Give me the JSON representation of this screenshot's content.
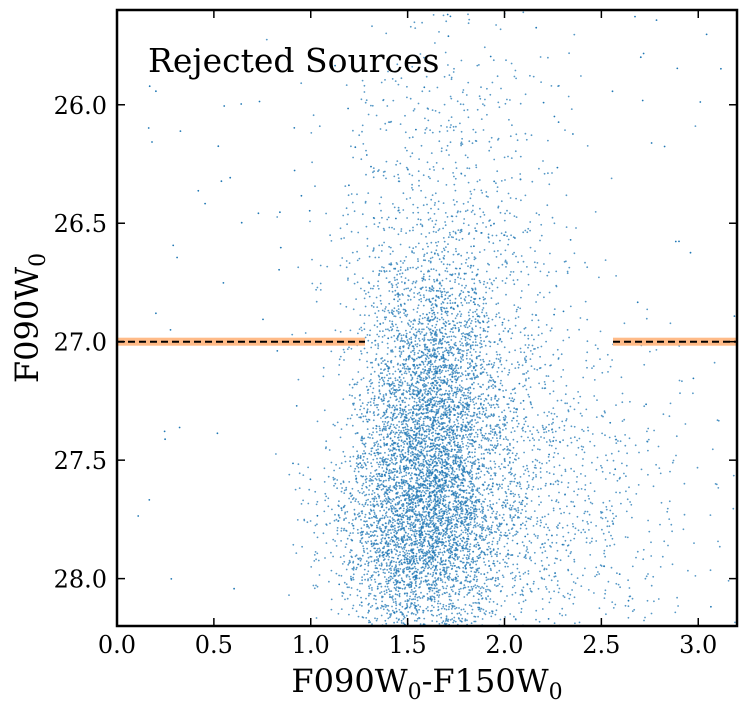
{
  "chart_data": {
    "type": "scatter",
    "annotation": "Rejected Sources",
    "xlabel": {
      "main": "F090W",
      "sub": "0",
      "sep": "-",
      "main2": "F150W",
      "sub2": "0"
    },
    "ylabel": {
      "main": "F090W",
      "sub": "0"
    },
    "xlim": [
      0.0,
      3.2
    ],
    "ylim": [
      28.2,
      25.6
    ],
    "y_inverted": true,
    "xticks": [
      0.0,
      0.5,
      1.0,
      1.5,
      2.0,
      2.5,
      3.0
    ],
    "xtick_labels": [
      "0.0",
      "0.5",
      "1.0",
      "1.5",
      "2.0",
      "2.5",
      "3.0"
    ],
    "yticks": [
      26.0,
      26.5,
      27.0,
      27.5,
      28.0
    ],
    "ytick_labels": [
      "26.0",
      "26.5",
      "27.0",
      "27.5",
      "28.0"
    ],
    "grid": false,
    "point_color": "#1f77b4",
    "cut_color": "#000000",
    "cut_band_color": "#ffbb88",
    "magnitude_cut": {
      "y": 27.0,
      "segments": [
        [
          0.0,
          1.28
        ],
        [
          2.56,
          3.2
        ]
      ]
    },
    "density_model": {
      "description_points": "dense cloud of rejected sources centered near color 1.6, magnitude 27.3, spreading downward to 28.2",
      "components": [
        {
          "x": 1.62,
          "y": 27.35,
          "sx": 0.18,
          "sy": 0.35,
          "weight": 0.42
        },
        {
          "x": 1.55,
          "y": 27.85,
          "sx": 0.22,
          "sy": 0.25,
          "weight": 0.28
        },
        {
          "x": 1.95,
          "y": 27.55,
          "sx": 0.35,
          "sy": 0.4,
          "weight": 0.15
        },
        {
          "x": 1.7,
          "y": 26.5,
          "sx": 0.3,
          "sy": 0.45,
          "weight": 0.1
        },
        {
          "x": 2.3,
          "y": 27.8,
          "sx": 0.45,
          "sy": 0.35,
          "weight": 0.05
        }
      ],
      "n_points": 9000
    }
  }
}
